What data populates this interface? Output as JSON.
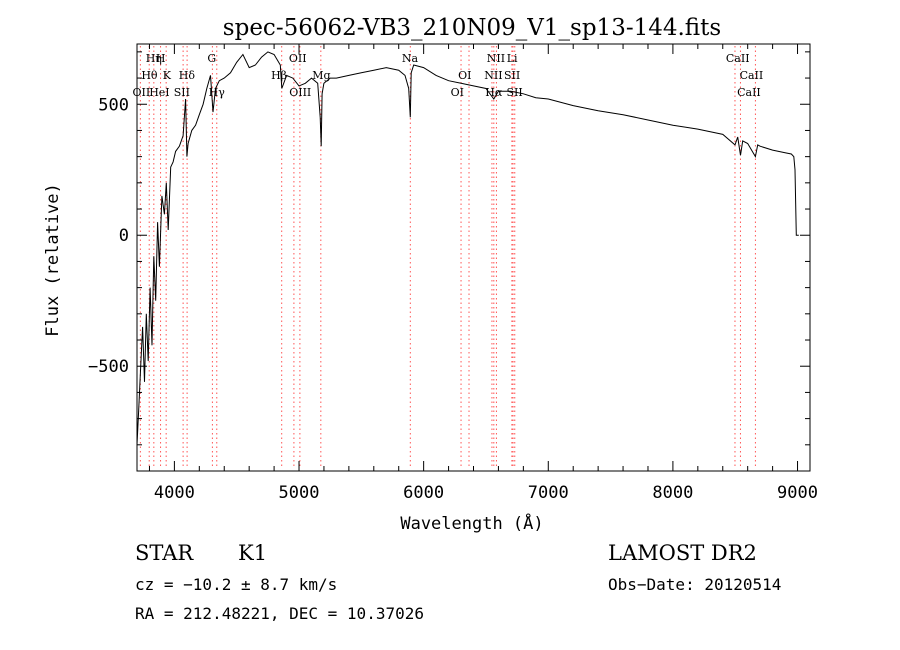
{
  "chart_data": {
    "type": "line",
    "title": "spec-56062-VB3_210N09_V1_sp13-144.fits",
    "xlabel": "Wavelength (Å)",
    "ylabel": "Flux (relative)",
    "xlim": [
      3700,
      9100
    ],
    "ylim": [
      -900,
      730
    ],
    "x_ticks": [
      4000,
      5000,
      6000,
      7000,
      8000,
      9000
    ],
    "x_tick_labels": [
      "4000",
      "5000",
      "6000",
      "7000",
      "8000",
      "9000"
    ],
    "y_ticks": [
      -500,
      0,
      500
    ],
    "y_tick_labels": [
      "−500",
      "0",
      "500"
    ],
    "grid": false,
    "colors": {
      "spectrum": "#000000",
      "line_marker": "#ff5555",
      "axes": "#000000"
    },
    "series": [
      {
        "x": [
          3700,
          3715,
          3730,
          3745,
          3760,
          3775,
          3790,
          3805,
          3820,
          3835,
          3850,
          3865,
          3880,
          3900,
          3920,
          3935,
          3950,
          3970,
          3990,
          4010,
          4040,
          4070,
          4090,
          4100,
          4110,
          4140,
          4170,
          4200,
          4230,
          4260,
          4290,
          4310,
          4330,
          4360,
          4400,
          4450,
          4500,
          4550,
          4600,
          4650,
          4700,
          4750,
          4800,
          4850,
          4862,
          4900,
          4950,
          5000,
          5050,
          5100,
          5150,
          5170,
          5178,
          5185,
          5200,
          5250,
          5300,
          5400,
          5500,
          5600,
          5700,
          5800,
          5850,
          5880,
          5893,
          5900,
          5920,
          6000,
          6100,
          6200,
          6300,
          6400,
          6500,
          6563,
          6600,
          6700,
          6800,
          6900,
          7000,
          7200,
          7400,
          7600,
          7800,
          8000,
          8200,
          8400,
          8498,
          8520,
          8542,
          8560,
          8600,
          8662,
          8680,
          8700,
          8800,
          8900,
          8950,
          8970,
          8980,
          8990,
          9000,
          9010
        ],
        "y": [
          -800,
          -650,
          -500,
          -350,
          -560,
          -300,
          -480,
          -200,
          -420,
          -80,
          -250,
          50,
          -120,
          150,
          80,
          200,
          20,
          260,
          280,
          320,
          340,
          380,
          520,
          300,
          350,
          400,
          420,
          460,
          500,
          560,
          610,
          470,
          560,
          590,
          600,
          620,
          660,
          690,
          640,
          650,
          680,
          700,
          690,
          650,
          560,
          610,
          600,
          570,
          580,
          600,
          580,
          450,
          340,
          540,
          580,
          600,
          600,
          610,
          620,
          630,
          640,
          630,
          610,
          560,
          450,
          620,
          650,
          640,
          610,
          590,
          580,
          570,
          560,
          520,
          550,
          550,
          540,
          525,
          520,
          495,
          475,
          460,
          440,
          420,
          405,
          385,
          345,
          375,
          305,
          360,
          350,
          300,
          345,
          340,
          325,
          315,
          310,
          300,
          250,
          0,
          0,
          0
        ]
      }
    ],
    "line_labels": [
      {
        "text": "Hη",
        "row": 1,
        "x": 3835,
        "marker": 3835
      },
      {
        "text": "H",
        "row": 1,
        "x": 3890,
        "marker": 3889
      },
      {
        "text": "G",
        "row": 1,
        "x": 4300,
        "marker": 4305
      },
      {
        "text": "OII",
        "row": 1,
        "x": 4990,
        "marker": 4959
      },
      {
        "text": "Na",
        "row": 1,
        "x": 5890,
        "marker": 5893
      },
      {
        "text": "NII",
        "row": 1,
        "x": 6580,
        "marker": 6584
      },
      {
        "text": "Li",
        "row": 1,
        "x": 6710,
        "marker": 6708
      },
      {
        "text": "CaII",
        "row": 1,
        "x": 8520,
        "marker": 8498
      },
      {
        "text": "Hθ",
        "row": 2,
        "x": 3800,
        "marker": 3798
      },
      {
        "text": "K",
        "row": 2,
        "x": 3940,
        "marker": 3934
      },
      {
        "text": "Hδ",
        "row": 2,
        "x": 4100,
        "marker": 4102
      },
      {
        "text": "Hβ",
        "row": 2,
        "x": 4840,
        "marker": 4861
      },
      {
        "text": "Mg",
        "row": 2,
        "x": 5180,
        "marker": 5175
      },
      {
        "text": "OI",
        "row": 2,
        "x": 6330,
        "marker": 6300
      },
      {
        "text": "NII",
        "row": 2,
        "x": 6560,
        "marker": 6548
      },
      {
        "text": "SII",
        "row": 2,
        "x": 6710,
        "marker": 6717
      },
      {
        "text": "CaII",
        "row": 2,
        "x": 8630,
        "marker": 8542
      },
      {
        "text": "OII",
        "row": 3,
        "x": 3735,
        "marker": 3727
      },
      {
        "text": "HeI",
        "row": 3,
        "x": 3880,
        "marker": 3889
      },
      {
        "text": "SII",
        "row": 3,
        "x": 4060,
        "marker": 4070
      },
      {
        "text": "Hγ",
        "row": 3,
        "x": 4340,
        "marker": 4340
      },
      {
        "text": "OIII",
        "row": 3,
        "x": 5010,
        "marker": 5007
      },
      {
        "text": "OI",
        "row": 3,
        "x": 6270,
        "marker": 6364
      },
      {
        "text": "Hα",
        "row": 3,
        "x": 6563,
        "marker": 6563
      },
      {
        "text": "SII",
        "row": 3,
        "x": 6730,
        "marker": 6731
      },
      {
        "text": "CaII",
        "row": 3,
        "x": 8610,
        "marker": 8662
      }
    ]
  },
  "footer": {
    "object_class": "STAR",
    "subclass": "K1",
    "cz": "cz = −10.2 ± 8.7 km/s",
    "coords": "RA = 212.48221, DEC =  10.37026",
    "survey": "LAMOST DR2",
    "obs_date": "Obs−Date: 20120514"
  }
}
